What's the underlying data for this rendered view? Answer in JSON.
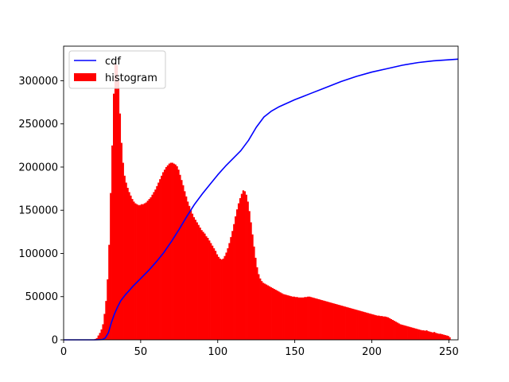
{
  "chart_data": {
    "type": "bar",
    "title": "",
    "xlabel": "",
    "ylabel": "",
    "xlim": [
      0,
      256
    ],
    "ylim": [
      0,
      340000
    ],
    "grid": false,
    "legend_placement": "upper-left",
    "x_ticks": [
      0,
      50,
      100,
      150,
      200,
      250
    ],
    "y_ticks": [
      0,
      50000,
      100000,
      150000,
      200000,
      250000,
      300000
    ],
    "bin_width": 1,
    "series": [
      {
        "name": "histogram",
        "type": "bar",
        "color": "#ff0000",
        "x_start": 0,
        "values": [
          0,
          0,
          0,
          0,
          0,
          0,
          0,
          0,
          0,
          0,
          0,
          0,
          0,
          0,
          0,
          0,
          0,
          0,
          0,
          0,
          1000,
          2000,
          5000,
          8000,
          12000,
          18000,
          30000,
          45000,
          70000,
          110000,
          170000,
          225000,
          285000,
          320000,
          318000,
          300000,
          262000,
          228000,
          205000,
          190000,
          182000,
          176000,
          171000,
          167000,
          163000,
          160000,
          158000,
          157000,
          156000,
          156000,
          157000,
          157000,
          158000,
          159000,
          161000,
          163000,
          165000,
          168000,
          171000,
          174000,
          178000,
          182000,
          186000,
          190000,
          194000,
          197000,
          200000,
          202000,
          204000,
          205000,
          205000,
          204000,
          203000,
          201000,
          197000,
          191000,
          185000,
          179000,
          172000,
          166000,
          160000,
          155000,
          150000,
          146000,
          142000,
          139000,
          136000,
          133000,
          130000,
          127000,
          125000,
          123000,
          120000,
          118000,
          115000,
          112000,
          109000,
          106000,
          103000,
          99000,
          96000,
          94000,
          93000,
          94000,
          97000,
          101000,
          106000,
          112000,
          119000,
          126000,
          134000,
          143000,
          151000,
          158000,
          164000,
          169000,
          173000,
          172000,
          168000,
          160000,
          149000,
          136000,
          122000,
          108000,
          95000,
          84000,
          76000,
          71000,
          68000,
          66000,
          65000,
          64000,
          63000,
          62000,
          61000,
          60000,
          59000,
          58000,
          57000,
          56000,
          55000,
          54000,
          53000,
          52500,
          52000,
          51500,
          51000,
          50500,
          50000,
          50000,
          49500,
          49500,
          49000,
          49000,
          49000,
          49000,
          49500,
          49500,
          50000,
          50000,
          49500,
          49000,
          48500,
          48000,
          47500,
          47000,
          46500,
          46000,
          45500,
          45000,
          44500,
          44000,
          43500,
          43000,
          42500,
          42000,
          41500,
          41000,
          40500,
          40000,
          39500,
          39000,
          38500,
          38000,
          37500,
          37000,
          36500,
          36000,
          35500,
          35000,
          34500,
          34000,
          33500,
          33000,
          32500,
          32000,
          31500,
          31000,
          30500,
          30000,
          29500,
          29000,
          28500,
          28000,
          28000,
          27500,
          27500,
          27000,
          27000,
          26500,
          26000,
          25000,
          24000,
          23000,
          22000,
          21000,
          20000,
          19000,
          18000,
          17500,
          17000,
          16500,
          16000,
          15500,
          15000,
          14500,
          14000,
          13500,
          13000,
          12500,
          12000,
          11500,
          11000,
          11000,
          10500,
          11000,
          10000,
          9500,
          9000,
          8500,
          9000,
          8000,
          7500,
          7000,
          7000,
          6500,
          6000,
          5500,
          5000,
          4500,
          3000
        ]
      },
      {
        "name": "cdf",
        "type": "line",
        "color": "#0000ff",
        "points": [
          [
            0,
            0
          ],
          [
            20,
            0
          ],
          [
            25,
            300
          ],
          [
            27,
            2000
          ],
          [
            29,
            8000
          ],
          [
            30,
            14000
          ],
          [
            31,
            20000
          ],
          [
            33,
            30000
          ],
          [
            35,
            38000
          ],
          [
            37,
            45000
          ],
          [
            40,
            52000
          ],
          [
            45,
            62000
          ],
          [
            50,
            71000
          ],
          [
            55,
            80000
          ],
          [
            60,
            90000
          ],
          [
            65,
            101000
          ],
          [
            70,
            114000
          ],
          [
            75,
            128000
          ],
          [
            80,
            143000
          ],
          [
            85,
            157000
          ],
          [
            90,
            169000
          ],
          [
            95,
            180000
          ],
          [
            100,
            191000
          ],
          [
            105,
            201000
          ],
          [
            110,
            210000
          ],
          [
            115,
            219000
          ],
          [
            120,
            231000
          ],
          [
            125,
            246000
          ],
          [
            130,
            258000
          ],
          [
            135,
            265000
          ],
          [
            140,
            270000
          ],
          [
            145,
            274000
          ],
          [
            150,
            278000
          ],
          [
            160,
            285000
          ],
          [
            170,
            292000
          ],
          [
            180,
            299000
          ],
          [
            190,
            305000
          ],
          [
            200,
            310000
          ],
          [
            210,
            314000
          ],
          [
            220,
            318000
          ],
          [
            230,
            321000
          ],
          [
            240,
            323000
          ],
          [
            256,
            325000
          ]
        ]
      }
    ]
  },
  "legend": {
    "cdf_label": "cdf",
    "histogram_label": "histogram"
  }
}
